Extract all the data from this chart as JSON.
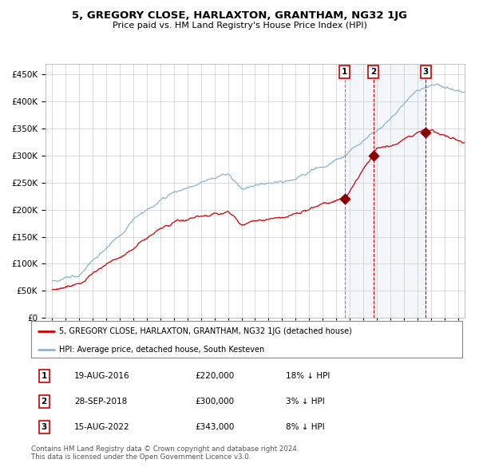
{
  "title": "5, GREGORY CLOSE, HARLAXTON, GRANTHAM, NG32 1JG",
  "subtitle": "Price paid vs. HM Land Registry's House Price Index (HPI)",
  "hpi_color": "#8ab4d4",
  "price_color": "#cc0000",
  "transaction_color": "#8b0000",
  "background_color": "#ffffff",
  "plot_bg_color": "#ffffff",
  "grid_color": "#cccccc",
  "ylim": [
    0,
    470000
  ],
  "yticks": [
    0,
    50000,
    100000,
    150000,
    200000,
    250000,
    300000,
    350000,
    400000,
    450000
  ],
  "legend_label_price": "5, GREGORY CLOSE, HARLAXTON, GRANTHAM, NG32 1JG (detached house)",
  "legend_label_hpi": "HPI: Average price, detached house, South Kesteven",
  "transactions": [
    {
      "num": 1,
      "date": "19-AUG-2016",
      "price": 220000,
      "hpi_pct": "18% ↓ HPI",
      "year": 2016.62
    },
    {
      "num": 2,
      "date": "28-SEP-2018",
      "price": 300000,
      "hpi_pct": "3% ↓ HPI",
      "year": 2018.74
    },
    {
      "num": 3,
      "date": "15-AUG-2022",
      "price": 343000,
      "hpi_pct": "8% ↓ HPI",
      "year": 2022.62
    }
  ],
  "copyright_text": "Contains HM Land Registry data © Crown copyright and database right 2024.\nThis data is licensed under the Open Government Licence v3.0.",
  "shade_start": 2016.62,
  "shade_end": 2022.62,
  "xmin": 1994.5,
  "xmax": 2025.5
}
